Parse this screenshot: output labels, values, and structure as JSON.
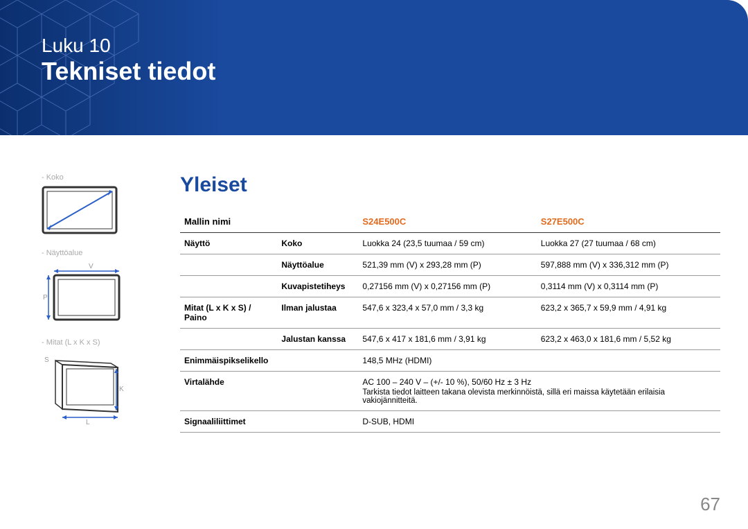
{
  "header": {
    "chapter": "Luku 10",
    "title": "Tekniset tiedot"
  },
  "section_title": "Yleiset",
  "sidebar": {
    "fig1_label": "- Koko",
    "fig2_label": "- Näyttöalue",
    "fig2_v": "V",
    "fig2_p": "P",
    "fig3_label": "- Mitat (L x K x S)",
    "fig3_s": "S",
    "fig3_k": "K",
    "fig3_l": "L"
  },
  "table": {
    "head_model": "Mallin nimi",
    "head_s24": "S24E500C",
    "head_s27": "S27E500C",
    "rows": [
      {
        "a": "Näyttö",
        "b": "Koko",
        "c": "Luokka 24 (23,5 tuumaa / 59 cm)",
        "d": "Luokka 27 (27 tuumaa / 68 cm)"
      },
      {
        "a": "",
        "b": "Näyttöalue",
        "c": "521,39 mm (V) x 293,28 mm (P)",
        "d": "597,888 mm (V) x 336,312 mm (P)"
      },
      {
        "a": "",
        "b": "Kuvapistetiheys",
        "c": "0,27156 mm (V) x 0,27156 mm (P)",
        "d": "0,3114 mm (V) x 0,3114 mm (P)"
      },
      {
        "a": "Mitat (L x K x S) / Paino",
        "b": "Ilman jalustaa",
        "c": "547,6 x 323,4 x 57,0 mm / 3,3 kg",
        "d": "623,2 x 365,7 x 59,9 mm / 4,91 kg"
      },
      {
        "a": "",
        "b": "Jalustan kanssa",
        "c": "547,6 x 417 x 181,6 mm / 3,91 kg",
        "d": "623,2 x 463,0 x 181,6 mm / 5,52 kg"
      },
      {
        "a": "Enimmäispikselikello",
        "b": "",
        "c": "148,5 MHz (HDMI)",
        "d": ""
      },
      {
        "a": "Virtalähde",
        "b": "",
        "c": "AC 100 – 240 V – (+/- 10 %), 50/60 Hz ± 3 Hz",
        "d": "",
        "note": "Tarkista tiedot laitteen takana olevista merkinnöistä, sillä eri maissa käytetään erilaisia vakiojännitteitä."
      },
      {
        "a": "Signaaliliittimet",
        "b": "",
        "c": "D-SUB, HDMI",
        "d": ""
      }
    ]
  },
  "page_number": "67",
  "colors": {
    "accent": "#1a4a9e",
    "model": "#e06a1e",
    "diagram_stroke": "#2a5fc9"
  }
}
